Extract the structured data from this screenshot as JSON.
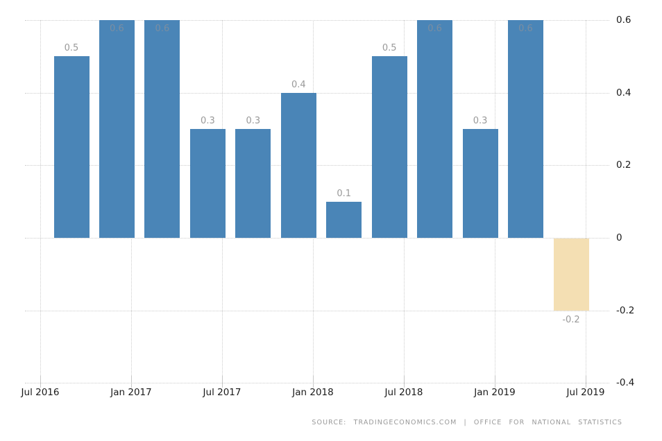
{
  "chart_data": {
    "type": "bar",
    "title": "",
    "values": [
      0.5,
      0.6,
      0.6,
      0.3,
      0.3,
      0.4,
      0.1,
      0.5,
      0.6,
      0.3,
      0.6,
      -0.2
    ],
    "bar_labels": [
      "0.5",
      "0.6",
      "0.6",
      "0.3",
      "0.3",
      "0.4",
      "0.1",
      "0.5",
      "0.6",
      "0.3",
      "0.6",
      "-0.2"
    ],
    "x_tick_labels": [
      "Jul 2016",
      "Jan 2017",
      "Jul 2017",
      "Jan 2018",
      "Jul 2018",
      "Jan 2019",
      "Jul 2019"
    ],
    "y_tick_labels": [
      "0.6",
      "0.4",
      "0.2",
      "0",
      "-0.2",
      "-0.4"
    ],
    "y_tick_values": [
      0.6,
      0.4,
      0.2,
      0,
      -0.2,
      -0.4
    ],
    "ylim": [
      -0.4,
      0.6
    ],
    "grid": "dotted",
    "legend": "none",
    "colors": {
      "bar_positive": "#4A85B7",
      "bar_negative": "#F4DFB3",
      "gridline": "#CCCCCC",
      "tick": "#C8C8C8",
      "axis_label": "#1A1A1A",
      "value_label": "#999999",
      "value_label_inside_bar": "#7B8EA1"
    },
    "source": "SOURCE: TRADINGECONOMICS.COM | OFFICE FOR NATIONAL STATISTICS"
  }
}
